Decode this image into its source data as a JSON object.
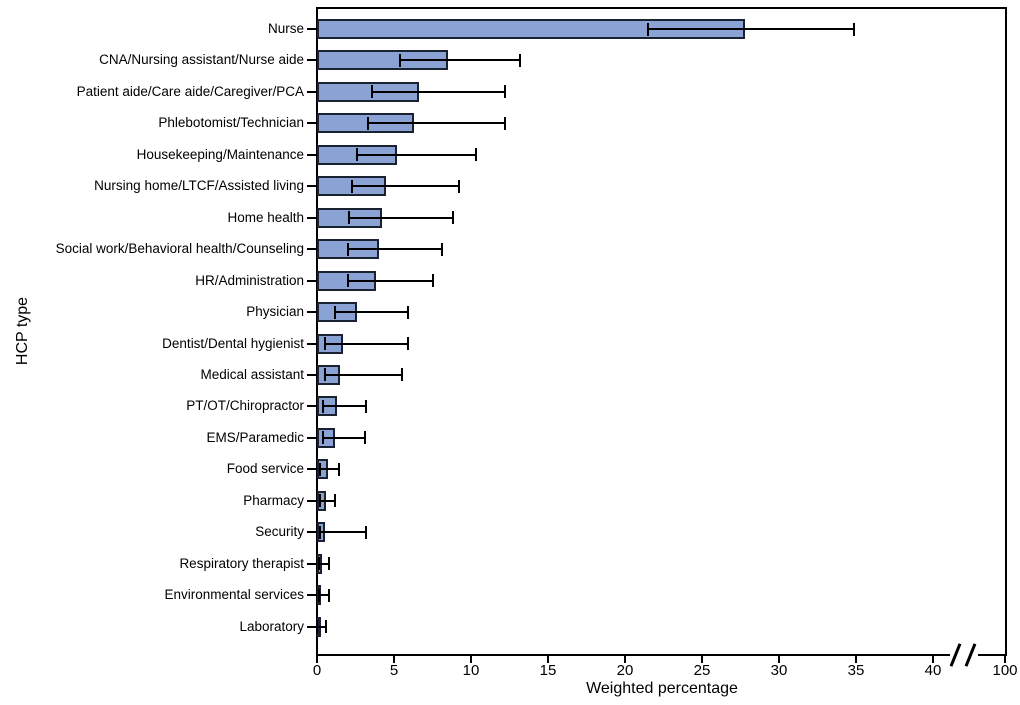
{
  "figure": {
    "type_label": "horizontal bar chart with 95% CI error bars",
    "background": "#FFFFFF"
  },
  "chart_data": {
    "type": "bar",
    "orientation": "horizontal",
    "title": "",
    "xlabel": "Weighted percentage",
    "ylabel": "HCP type",
    "grid": false,
    "legend": "none",
    "x_ticks": [
      0,
      5,
      10,
      15,
      20,
      25,
      30,
      35,
      40
    ],
    "x_axis_break_label": "100",
    "xlim_linear": [
      0,
      40
    ],
    "categories": [
      "Nurse",
      "CNA/Nursing assistant/Nurse aide",
      "Patient aide/Care aide/Caregiver/PCA",
      "Phlebotomist/Technician",
      "Housekeeping/Maintenance",
      "Nursing home/LTCF/Assisted living",
      "Home health",
      "Social work/Behavioral health/Counseling",
      "HR/Administration",
      "Physician",
      "Dentist/Dental hygienist",
      "Medical assistant",
      "PT/OT/Chiropractor",
      "EMS/Paramedic",
      "Food service",
      "Pharmacy",
      "Security",
      "Respiratory therapist",
      "Environmental services",
      "Laboratory"
    ],
    "series": [
      {
        "name": "Weighted percentage",
        "values": [
          27.8,
          8.5,
          6.6,
          6.3,
          5.2,
          4.5,
          4.2,
          4.0,
          3.8,
          2.6,
          1.7,
          1.5,
          1.3,
          1.2,
          0.7,
          0.6,
          0.5,
          0.3,
          0.25,
          0.1
        ],
        "ci_low": [
          21.5,
          5.4,
          3.6,
          3.3,
          2.6,
          2.3,
          2.1,
          2.0,
          2.0,
          1.2,
          0.5,
          0.5,
          0.4,
          0.4,
          0.2,
          0.2,
          0.2,
          0.1,
          0.1,
          0.0
        ],
        "ci_high": [
          34.9,
          13.2,
          12.2,
          12.2,
          10.3,
          9.2,
          8.8,
          8.1,
          7.5,
          5.9,
          5.9,
          5.5,
          3.2,
          3.1,
          1.4,
          1.2,
          3.2,
          0.8,
          0.8,
          0.6
        ]
      }
    ],
    "colors": {
      "bar_fill": "#8AA2D4",
      "bar_border": "#1A2130",
      "error_bar": "#000000",
      "axis": "#000000",
      "text": "#000000"
    }
  }
}
